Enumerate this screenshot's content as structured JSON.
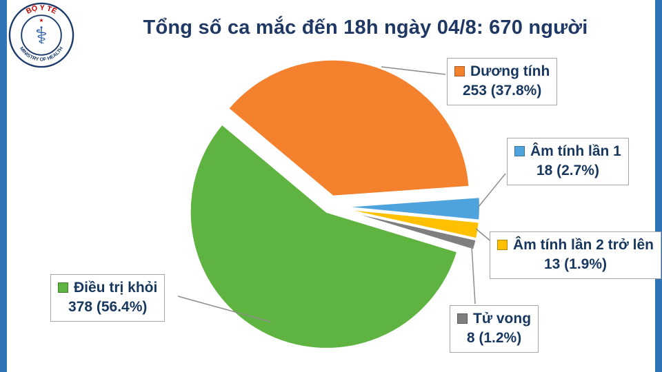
{
  "header": {
    "title": "Tổng số ca mắc đến 18h ngày 04/8: 670 người"
  },
  "logo": {
    "top_text": "BỘ Y TẾ",
    "bottom_text": "MINISTRY OF HEALTH",
    "star": "★",
    "emblem": "⚕"
  },
  "chart_data": {
    "type": "pie",
    "title": "Tổng số ca mắc đến 18h ngày 04/8: 670 người",
    "total": 670,
    "start_angle_deg": -50,
    "legend_position": "callouts",
    "slices": [
      {
        "label": "Dương tính",
        "value": 253,
        "pct": 37.8,
        "value_text": "253 (37.8%)",
        "color": "#F4812D"
      },
      {
        "label": "Âm tính lần 1",
        "value": 18,
        "pct": 2.7,
        "value_text": "18 (2.7%)",
        "color": "#4FA3DC"
      },
      {
        "label": "Âm tính lần 2 trở lên",
        "value": 13,
        "pct": 1.9,
        "value_text": "13 (1.9%)",
        "color": "#FFC000"
      },
      {
        "label": "Tử vong",
        "value": 8,
        "pct": 1.2,
        "value_text": "8 (1.2%)",
        "color": "#7F7F7F"
      },
      {
        "label": "Điều trị khỏi",
        "value": 378,
        "pct": 56.4,
        "value_text": "378 (56.4%)",
        "color": "#5FB441"
      }
    ]
  },
  "colors": {
    "edge_strip": "#2E75B6",
    "title_text": "#1F3864",
    "label_text": "#17375E"
  }
}
